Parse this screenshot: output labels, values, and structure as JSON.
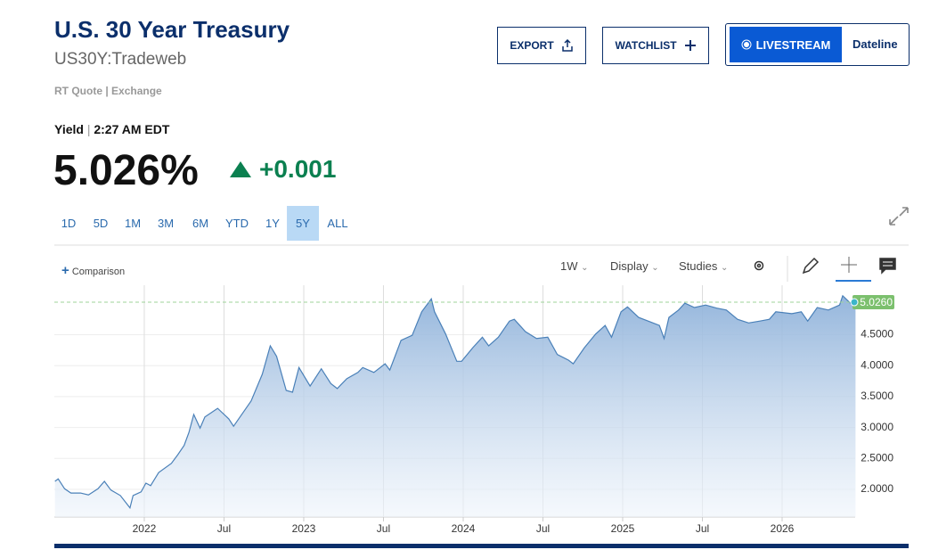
{
  "header": {
    "title": "U.S. 30 Year Treasury",
    "symbol": "US30Y:Tradeweb",
    "source": "RT Quote | Exchange",
    "buttons": [
      "EXPORT",
      "WATCHLIST"
    ],
    "livestream": "LIVESTREAM",
    "livestream_show": "Dateline"
  },
  "quote": {
    "label": "Yield",
    "time": "2:27 AM EDT",
    "value": "5.026%",
    "change": "+0.001"
  },
  "range_tabs": [
    "1D",
    "5D",
    "1M",
    "3M",
    "6M",
    "YTD",
    "1Y",
    "5Y",
    "ALL"
  ],
  "active_tab": "5Y",
  "toolbar": {
    "comparison": "Comparison",
    "interval": "1W",
    "display": "Display",
    "studies": "Studies"
  },
  "chart_data": {
    "type": "area",
    "x": [
      2021.44,
      2021.46,
      2021.5,
      2021.54,
      2021.6,
      2021.65,
      2021.71,
      2021.75,
      2021.79,
      2021.85,
      2021.91,
      2021.93,
      2021.98,
      2022.01,
      2022.04,
      2022.09,
      2022.17,
      2022.21,
      2022.25,
      2022.28,
      2022.31,
      2022.35,
      2022.38,
      2022.46,
      2022.53,
      2022.56,
      2022.6,
      2022.67,
      2022.74,
      2022.79,
      2022.83,
      2022.89,
      2022.93,
      2022.97,
      2023.04,
      2023.11,
      2023.17,
      2023.21,
      2023.27,
      2023.34,
      2023.37,
      2023.44,
      2023.51,
      2023.54,
      2023.61,
      2023.68,
      2023.74,
      2023.8,
      2023.82,
      2023.89,
      2023.96,
      2023.99,
      2024.06,
      2024.12,
      2024.16,
      2024.22,
      2024.29,
      2024.32,
      2024.39,
      2024.46,
      2024.53,
      2024.59,
      2024.66,
      2024.69,
      2024.76,
      2024.83,
      2024.89,
      2024.93,
      2024.99,
      2025.03,
      2025.1,
      2025.16,
      2025.23,
      2025.26,
      2025.29,
      2025.35,
      2025.39,
      2025.45,
      2025.52,
      2025.59,
      2025.65,
      2025.72,
      2025.79,
      2025.86,
      2025.92,
      2025.96,
      2026.06,
      2026.12,
      2026.16,
      2026.22,
      2026.29,
      2026.36,
      2026.38,
      2026.44,
      2026.46
    ],
    "values": [
      2.13,
      2.17,
      2.01,
      1.94,
      1.94,
      1.91,
      2.01,
      2.13,
      1.99,
      1.9,
      1.7,
      1.9,
      1.96,
      2.1,
      2.06,
      2.27,
      2.42,
      2.56,
      2.71,
      2.92,
      3.21,
      2.99,
      3.17,
      3.31,
      3.14,
      3.02,
      3.17,
      3.43,
      3.86,
      4.32,
      4.15,
      3.6,
      3.57,
      3.97,
      3.67,
      3.95,
      3.71,
      3.63,
      3.79,
      3.89,
      3.97,
      3.89,
      4.03,
      3.93,
      4.41,
      4.49,
      4.87,
      5.08,
      4.87,
      4.51,
      4.07,
      4.07,
      4.29,
      4.46,
      4.32,
      4.46,
      4.72,
      4.75,
      4.55,
      4.44,
      4.46,
      4.18,
      4.09,
      4.03,
      4.29,
      4.51,
      4.65,
      4.46,
      4.87,
      4.95,
      4.78,
      4.72,
      4.65,
      4.44,
      4.78,
      4.9,
      5.01,
      4.94,
      4.98,
      4.93,
      4.9,
      4.75,
      4.69,
      4.72,
      4.75,
      4.87,
      4.84,
      4.87,
      4.72,
      4.94,
      4.9,
      4.98,
      5.13,
      4.98,
      5.026
    ],
    "line_color": "#4a80b8",
    "xlim": [
      2021.436,
      2026.458
    ],
    "xticks": [
      2022,
      {
        "value": 2022.5,
        "label": "Jul"
      },
      2023,
      {
        "value": 2023.5,
        "label": "Jul"
      },
      2024,
      {
        "value": 2024.5,
        "label": "Jul"
      },
      2025,
      {
        "value": 2025.5,
        "label": "Jul"
      },
      2026
    ],
    "ylim": [
      1.553,
      5.3
    ],
    "yticks": [
      {
        "value": 2,
        "label": "2.0000"
      },
      {
        "value": 2.5,
        "label": "2.5000"
      },
      {
        "value": 3,
        "label": "3.0000"
      },
      {
        "value": 3.5,
        "label": "3.5000"
      },
      {
        "value": 4,
        "label": "4.0000"
      },
      {
        "value": 4.5,
        "label": "4.5000"
      }
    ],
    "current_marker": {
      "value": 5.026,
      "label": "5.0260"
    },
    "grid": true
  }
}
